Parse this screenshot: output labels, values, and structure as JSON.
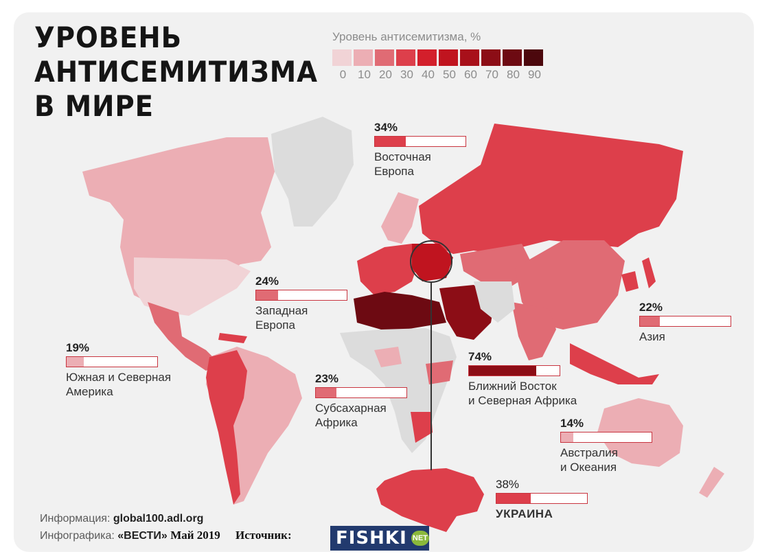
{
  "title": {
    "line1": "УРОВЕНЬ",
    "line2": "АНТИСЕМИТИЗМА",
    "line3": "В МИРЕ"
  },
  "legend": {
    "title": "Уровень антисемитизма, %",
    "colors": [
      "#f1d3d6",
      "#ecaeb4",
      "#e06b74",
      "#dd3f4b",
      "#d31f2b",
      "#c0141f",
      "#a8101a",
      "#8c0d16",
      "#6d0a12",
      "#4c080d"
    ],
    "ticks": [
      "0",
      "10",
      "20",
      "30",
      "40",
      "50",
      "60",
      "70",
      "80",
      "90"
    ]
  },
  "regions": [
    {
      "id": "eastern-europe",
      "percent_label": "34%",
      "value": 34,
      "name": "Восточная\nЕвропа"
    },
    {
      "id": "western-europe",
      "percent_label": "24%",
      "value": 24,
      "name": "Западная\nЕвропа"
    },
    {
      "id": "asia",
      "percent_label": "22%",
      "value": 22,
      "name": "Азия"
    },
    {
      "id": "americas",
      "percent_label": "19%",
      "value": 19,
      "name": "Южная и Северная\nАмерика"
    },
    {
      "id": "sub-saharan-africa",
      "percent_label": "23%",
      "value": 23,
      "name": "Субсахарная\nАфрика"
    },
    {
      "id": "middle-east",
      "percent_label": "74%",
      "value": 74,
      "name": "Ближний Восток\nи Северная Африка"
    },
    {
      "id": "australia",
      "percent_label": "14%",
      "value": 14,
      "name": "Австралия\nи Океания"
    },
    {
      "id": "ukraine",
      "percent_label": "38%",
      "value": 38,
      "name": "УКРАИНА"
    }
  ],
  "bar_colors": {
    "border": "#c8343f",
    "low": "#ecaeb4",
    "mid": "#dd3f4b",
    "high": "#6d0a12"
  },
  "footer": {
    "info_label": "Информация:",
    "info_value": "global100.adl.org",
    "infographic_label": "Инфографика:",
    "infographic_value": "«ВЕСТИ»",
    "date": "Май 2019",
    "source_label": "Источник:",
    "logo_text": "FISHKI",
    "logo_badge": "NET"
  }
}
